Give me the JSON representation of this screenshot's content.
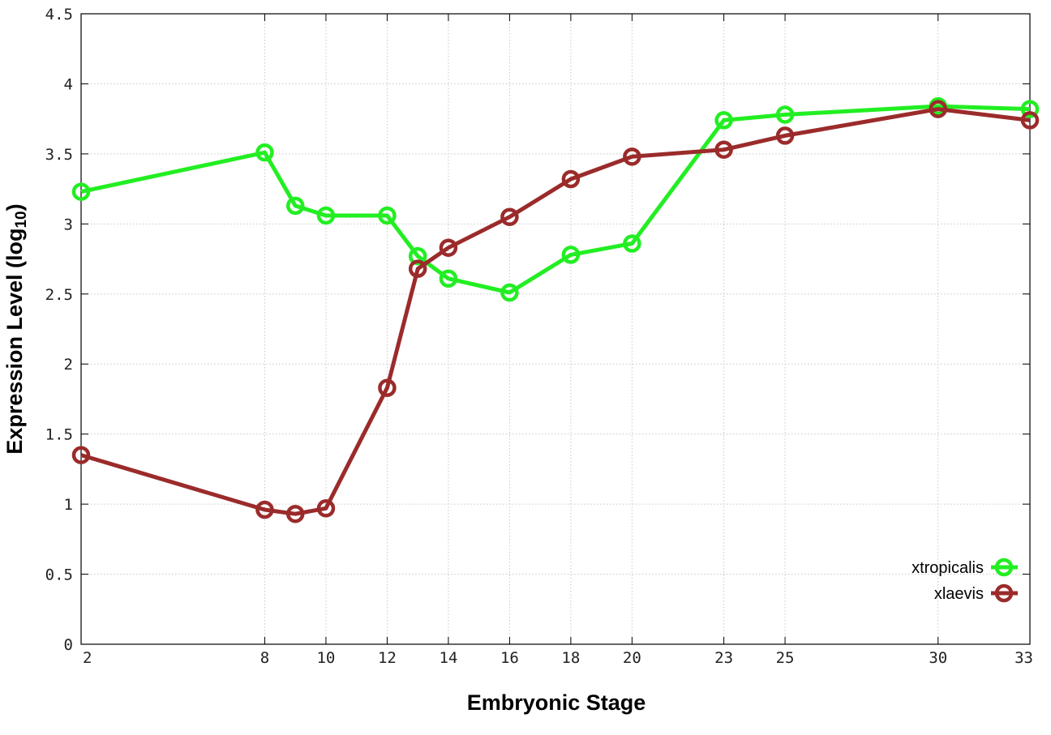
{
  "chart_data": {
    "type": "line",
    "xlabel": "Embryonic Stage",
    "ylabel_main": "Expression Level (log",
    "ylabel_sub": "10",
    "ylabel_close": ")",
    "xlim": [
      2,
      33
    ],
    "ylim": [
      0,
      4.5
    ],
    "x_ticks": [
      2,
      8,
      10,
      12,
      14,
      16,
      18,
      20,
      23,
      25,
      30,
      33
    ],
    "y_ticks": [
      0,
      0.5,
      1,
      1.5,
      2,
      2.5,
      3,
      3.5,
      4,
      4.5
    ],
    "y_tick_labels": [
      "0",
      "0.5",
      "1",
      "1.5",
      "2",
      "2.5",
      "3",
      "3.5",
      "4",
      "4.5"
    ],
    "grid": true,
    "legend_position": "bottom-right",
    "x": [
      2,
      8,
      9,
      10,
      12,
      13,
      14,
      16,
      18,
      20,
      23,
      25,
      30,
      33
    ],
    "series": [
      {
        "name": "xtropicalis",
        "color": "#22ee22",
        "values": [
          3.23,
          3.51,
          3.13,
          3.06,
          3.06,
          2.77,
          2.61,
          2.51,
          2.78,
          2.86,
          3.74,
          3.78,
          3.84,
          3.82
        ]
      },
      {
        "name": "xlaevis",
        "color": "#9b2b2b",
        "values": [
          1.35,
          0.96,
          0.93,
          0.97,
          1.83,
          2.68,
          2.83,
          3.05,
          3.32,
          3.48,
          3.53,
          3.63,
          3.82,
          3.74
        ]
      }
    ]
  }
}
